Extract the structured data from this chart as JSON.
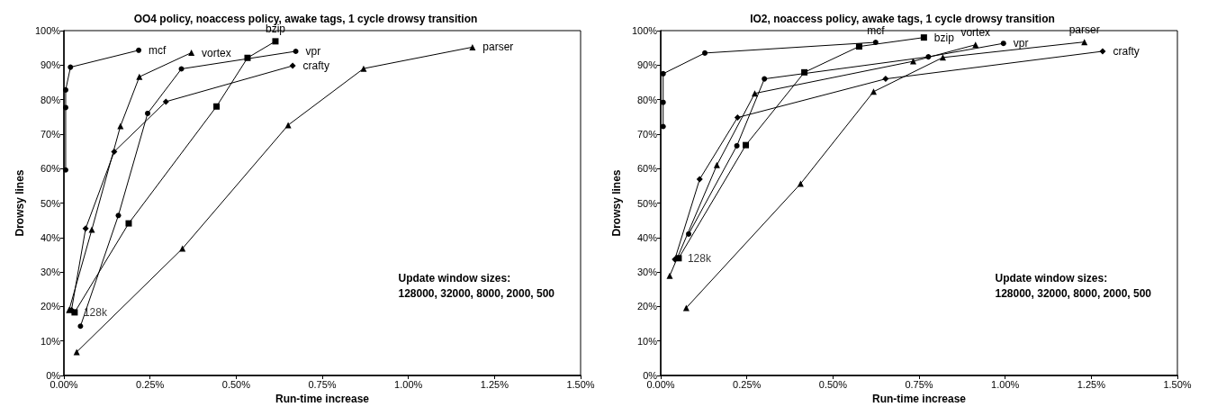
{
  "chart_data": [
    {
      "type": "line",
      "title": "OO4 policy, noaccess policy, awake tags, 1 cycle drowsy transition",
      "xlabel": "Run-time increase",
      "ylabel": "Drowsy lines",
      "xlim": [
        0,
        1.5
      ],
      "xticks": [
        {
          "value": 0,
          "label": "0.00%"
        },
        {
          "value": 0.25,
          "label": "0.25%"
        },
        {
          "value": 0.5,
          "label": "0.50%"
        },
        {
          "value": 0.75,
          "label": "0.75%"
        },
        {
          "value": 1,
          "label": "1.00%"
        },
        {
          "value": 1.25,
          "label": "1.25%"
        },
        {
          "value": 1.5,
          "label": "1.50%"
        }
      ],
      "ylim": [
        0,
        100
      ],
      "yticks": [
        {
          "value": 0,
          "label": "0%"
        },
        {
          "value": 10,
          "label": "10%"
        },
        {
          "value": 20,
          "label": "20%"
        },
        {
          "value": 30,
          "label": "30%"
        },
        {
          "value": 40,
          "label": "40%"
        },
        {
          "value": 50,
          "label": "50%"
        },
        {
          "value": 60,
          "label": "60%"
        },
        {
          "value": 70,
          "label": "70%"
        },
        {
          "value": 80,
          "label": "80%"
        },
        {
          "value": 90,
          "label": "90%"
        },
        {
          "value": 100,
          "label": "100%"
        }
      ],
      "grid": false,
      "legend": false,
      "line_style": "solid",
      "series": [
        {
          "name": "mcf",
          "color": "#000000",
          "marker": "circle",
          "x": [
            0.005,
            0.005,
            0.005,
            0.019,
            0.217
          ],
          "values": [
            59.6,
            77.7,
            82.8,
            89.4,
            94.3
          ]
        },
        {
          "name": "vortex",
          "color": "#000000",
          "marker": "triangle",
          "x": [
            0.015,
            0.081,
            0.164,
            0.219,
            0.37
          ],
          "values": [
            19,
            42.3,
            72.3,
            86.6,
            93.6
          ]
        },
        {
          "name": "bzip",
          "color": "#000000",
          "marker": "square",
          "x": [
            0.031,
            0.188,
            0.443,
            0.533,
            0.614
          ],
          "values": [
            18.3,
            44.1,
            78,
            92.1,
            96.9
          ]
        },
        {
          "name": "vpr",
          "color": "#000000",
          "marker": "circle",
          "x": [
            0.048,
            0.158,
            0.243,
            0.341,
            0.673
          ],
          "values": [
            14.3,
            46.4,
            76,
            88.9,
            94
          ]
        },
        {
          "name": "crafty",
          "color": "#000000",
          "marker": "diamond",
          "x": [
            0.022,
            0.063,
            0.146,
            0.296,
            0.664
          ],
          "values": [
            19,
            42.6,
            64.9,
            79.4,
            89.8
          ]
        },
        {
          "name": "parser",
          "color": "#000000",
          "marker": "triangle",
          "x": [
            0.037,
            0.344,
            0.651,
            0.87,
            1.186
          ],
          "values": [
            6.8,
            36.8,
            72.6,
            89,
            95.2
          ]
        }
      ],
      "annotations": [
        {
          "text": "128k",
          "x": 0.031,
          "y": 18.3
        },
        "Update window sizes:\n128000, 32000, 8000, 2000, 500"
      ]
    },
    {
      "type": "line",
      "title": "IO2, noaccess policy, awake tags, 1 cycle drowsy transition",
      "xlabel": "Run-time increase",
      "ylabel": "Drowsy lines",
      "xlim": [
        0,
        1.5
      ],
      "xticks": [
        {
          "value": 0,
          "label": "0.00%"
        },
        {
          "value": 0.25,
          "label": "0.25%"
        },
        {
          "value": 0.5,
          "label": "0.50%"
        },
        {
          "value": 0.75,
          "label": "0.75%"
        },
        {
          "value": 1,
          "label": "1.00%"
        },
        {
          "value": 1.25,
          "label": "1.25%"
        },
        {
          "value": 1.5,
          "label": "1.50%"
        }
      ],
      "ylim": [
        0,
        100
      ],
      "yticks": [
        {
          "value": 0,
          "label": "0%"
        },
        {
          "value": 10,
          "label": "10%"
        },
        {
          "value": 20,
          "label": "20%"
        },
        {
          "value": 30,
          "label": "30%"
        },
        {
          "value": 40,
          "label": "40%"
        },
        {
          "value": 50,
          "label": "50%"
        },
        {
          "value": 60,
          "label": "60%"
        },
        {
          "value": 70,
          "label": "70%"
        },
        {
          "value": 80,
          "label": "80%"
        },
        {
          "value": 90,
          "label": "90%"
        },
        {
          "value": 100,
          "label": "100%"
        }
      ],
      "grid": false,
      "legend": false,
      "line_style": "solid",
      "series": [
        {
          "name": "mcf",
          "color": "#000000",
          "marker": "circle",
          "x": [
            0.007,
            0.007,
            0.007,
            0.128,
            0.624
          ],
          "values": [
            72.2,
            79.2,
            87.5,
            93.5,
            96.6
          ]
        },
        {
          "name": "bzip",
          "color": "#000000",
          "marker": "square",
          "x": [
            0.052,
            0.247,
            0.417,
            0.576,
            0.764
          ],
          "values": [
            34,
            66.8,
            87.9,
            95.4,
            98
          ]
        },
        {
          "name": "vortex",
          "color": "#000000",
          "marker": "triangle",
          "x": [
            0.026,
            0.163,
            0.273,
            0.733,
            0.914
          ],
          "values": [
            28.9,
            61,
            81.8,
            91.1,
            95.9
          ]
        },
        {
          "name": "vpr",
          "color": "#000000",
          "marker": "circle",
          "x": [
            0.081,
            0.221,
            0.301,
            0.777,
            0.995
          ],
          "values": [
            41,
            66.6,
            86,
            92.4,
            96.3
          ]
        },
        {
          "name": "parser",
          "color": "#000000",
          "marker": "triangle",
          "x": [
            0.074,
            0.406,
            0.618,
            0.819,
            1.23
          ],
          "values": [
            19.6,
            55.6,
            82.3,
            92.2,
            96.7
          ]
        },
        {
          "name": "crafty",
          "color": "#000000",
          "marker": "diamond",
          "x": [
            0.041,
            0.113,
            0.223,
            0.653,
            1.283
          ],
          "values": [
            33.7,
            56.9,
            74.8,
            86,
            94
          ]
        }
      ],
      "annotations": [
        {
          "text": "128k",
          "x": 0.052,
          "y": 34
        },
        "Update window sizes:\n128000, 32000, 8000, 2000, 500"
      ]
    }
  ]
}
